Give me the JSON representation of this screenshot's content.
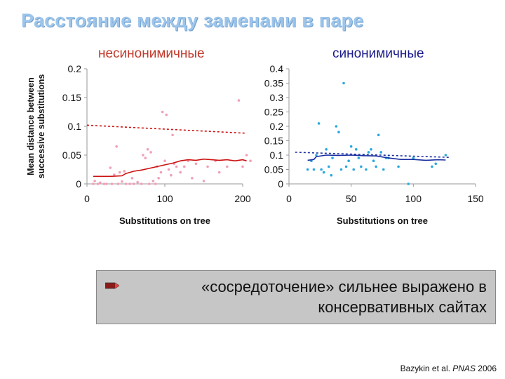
{
  "slide": {
    "title": "Расстояние между заменами в паре",
    "callout": "«сосредоточение» сильнее выражено в консервативных сайтах",
    "citation_author": "Bazykin et al. ",
    "citation_journal": "PNAS",
    "citation_year": " 2006",
    "bullet_icon": "pencil-icon"
  },
  "chart_data": [
    {
      "type": "scatter",
      "title": "несинонимичные",
      "ylabel": "Mean distance between successive substitutions",
      "xlabel": "Substitutions on tree",
      "xlim": [
        0,
        200
      ],
      "ylim": [
        0,
        0.2
      ],
      "xticks": [
        "0",
        "100",
        "200"
      ],
      "yticks": [
        "0",
        "0.05",
        "0.1",
        "0.15",
        "0.2"
      ],
      "color_points": "#f0a0b8",
      "color_line": "#cc1111",
      "points": [
        [
          8,
          0
        ],
        [
          10,
          0.005
        ],
        [
          14,
          0
        ],
        [
          17,
          0.002
        ],
        [
          22,
          0
        ],
        [
          25,
          0
        ],
        [
          30,
          0.028
        ],
        [
          32,
          0
        ],
        [
          35,
          0.016
        ],
        [
          38,
          0.065
        ],
        [
          40,
          0
        ],
        [
          42,
          0.02
        ],
        [
          45,
          0.004
        ],
        [
          48,
          0.022
        ],
        [
          50,
          0
        ],
        [
          55,
          0
        ],
        [
          58,
          0.01
        ],
        [
          60,
          0
        ],
        [
          65,
          0.003
        ],
        [
          70,
          0
        ],
        [
          72,
          0.05
        ],
        [
          75,
          0.045
        ],
        [
          78,
          0.06
        ],
        [
          80,
          0
        ],
        [
          82,
          0.055
        ],
        [
          85,
          0.005
        ],
        [
          88,
          0
        ],
        [
          90,
          0.03
        ],
        [
          92,
          0.01
        ],
        [
          95,
          0.02
        ],
        [
          97,
          0.125
        ],
        [
          100,
          0.04
        ],
        [
          102,
          0.12
        ],
        [
          105,
          0.025
        ],
        [
          108,
          0.015
        ],
        [
          110,
          0.085
        ],
        [
          112,
          0.035
        ],
        [
          115,
          0.03
        ],
        [
          120,
          0.02
        ],
        [
          125,
          0.03
        ],
        [
          130,
          0.04
        ],
        [
          135,
          0.01
        ],
        [
          140,
          0.035
        ],
        [
          150,
          0.005
        ],
        [
          155,
          0.03
        ],
        [
          165,
          0.04
        ],
        [
          170,
          0.02
        ],
        [
          180,
          0.03
        ],
        [
          195,
          0.145
        ],
        [
          200,
          0.03
        ],
        [
          205,
          0.05
        ],
        [
          210,
          0.04
        ]
      ],
      "smooth_line": [
        [
          8,
          0.013
        ],
        [
          30,
          0.013
        ],
        [
          45,
          0.014
        ],
        [
          50,
          0.018
        ],
        [
          60,
          0.022
        ],
        [
          70,
          0.024
        ],
        [
          80,
          0.027
        ],
        [
          90,
          0.03
        ],
        [
          100,
          0.033
        ],
        [
          110,
          0.036
        ],
        [
          120,
          0.04
        ],
        [
          130,
          0.042
        ],
        [
          140,
          0.041
        ],
        [
          150,
          0.043
        ],
        [
          160,
          0.042
        ],
        [
          170,
          0.041
        ],
        [
          180,
          0.042
        ],
        [
          190,
          0.04
        ],
        [
          200,
          0.042
        ],
        [
          205,
          0.04
        ]
      ],
      "trend_line": [
        [
          0,
          0.102
        ],
        [
          205,
          0.088
        ]
      ]
    },
    {
      "type": "scatter",
      "title": "синонимичные",
      "xlabel": "Substitutions on tree",
      "xlim": [
        0,
        150
      ],
      "ylim": [
        0,
        0.4
      ],
      "xticks": [
        "0",
        "50",
        "100",
        "150"
      ],
      "yticks": [
        "0",
        "0.05",
        "0.1",
        "0.15",
        "0.2",
        "0.25",
        "0.3",
        "0.35",
        "0.4"
      ],
      "color_points": "#2aa8e0",
      "color_line": "#1a2fa0",
      "points": [
        [
          15,
          0.05
        ],
        [
          18,
          0.08
        ],
        [
          20,
          0.05
        ],
        [
          22,
          0.1
        ],
        [
          24,
          0.21
        ],
        [
          26,
          0.05
        ],
        [
          28,
          0.04
        ],
        [
          30,
          0.12
        ],
        [
          32,
          0.06
        ],
        [
          34,
          0.03
        ],
        [
          35,
          0.09
        ],
        [
          38,
          0.2
        ],
        [
          40,
          0.18
        ],
        [
          42,
          0.05
        ],
        [
          44,
          0.35
        ],
        [
          46,
          0.06
        ],
        [
          48,
          0.08
        ],
        [
          50,
          0.13
        ],
        [
          52,
          0.05
        ],
        [
          54,
          0.12
        ],
        [
          56,
          0.09
        ],
        [
          58,
          0.06
        ],
        [
          60,
          0.1
        ],
        [
          62,
          0.05
        ],
        [
          64,
          0.11
        ],
        [
          66,
          0.12
        ],
        [
          68,
          0.08
        ],
        [
          70,
          0.06
        ],
        [
          72,
          0.17
        ],
        [
          74,
          0.11
        ],
        [
          76,
          0.05
        ],
        [
          78,
          0.09
        ],
        [
          80,
          0.09
        ],
        [
          88,
          0.06
        ],
        [
          96,
          0.0
        ],
        [
          100,
          0.09
        ],
        [
          115,
          0.06
        ],
        [
          118,
          0.07
        ],
        [
          126,
          0.1
        ]
      ],
      "smooth_line": [
        [
          15,
          0.082
        ],
        [
          20,
          0.085
        ],
        [
          22,
          0.095
        ],
        [
          30,
          0.1
        ],
        [
          40,
          0.099
        ],
        [
          50,
          0.1
        ],
        [
          60,
          0.098
        ],
        [
          70,
          0.097
        ],
        [
          80,
          0.09
        ],
        [
          90,
          0.085
        ],
        [
          100,
          0.085
        ],
        [
          110,
          0.082
        ],
        [
          120,
          0.084
        ],
        [
          126,
          0.083
        ]
      ],
      "trend_line": [
        [
          5,
          0.11
        ],
        [
          130,
          0.092
        ]
      ]
    }
  ]
}
